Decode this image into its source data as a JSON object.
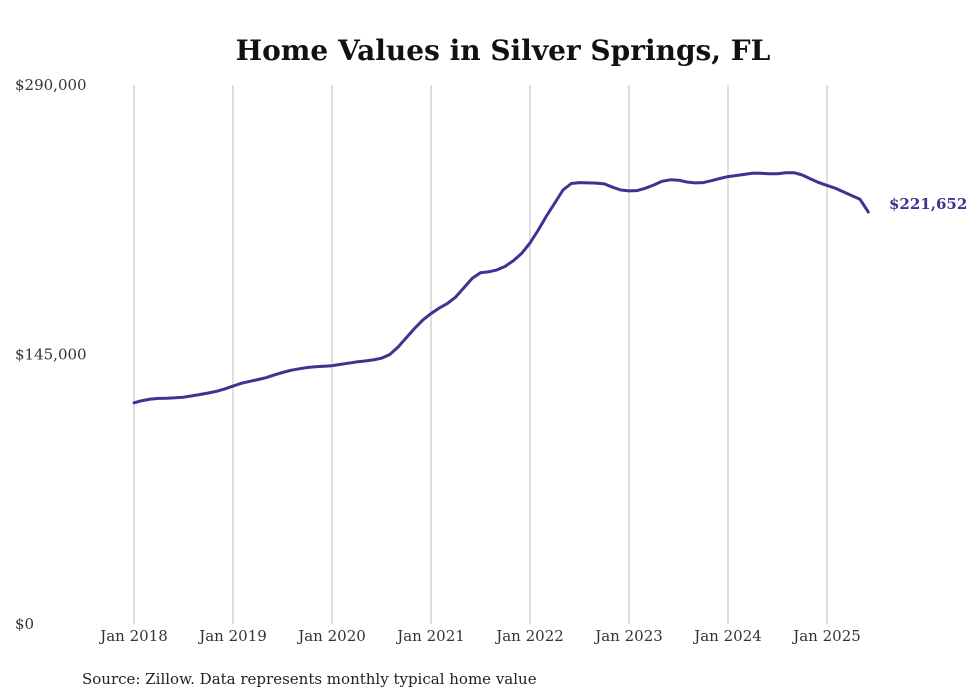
{
  "chart_data": {
    "type": "line",
    "title": "Home Values in Silver Springs, FL",
    "source": "Source: Zillow. Data represents monthly typical home value",
    "xlabel": "",
    "ylabel": "",
    "ylim": [
      0,
      290000
    ],
    "y_ticks": [
      "$0",
      "$145,000",
      "$290,000"
    ],
    "y_tick_values": [
      0,
      145000,
      290000
    ],
    "x_tick_labels": [
      "Jan 2018",
      "Jan 2019",
      "Jan 2020",
      "Jan 2021",
      "Jan 2022",
      "Jan 2023",
      "Jan 2024",
      "Jan 2025"
    ],
    "x_tick_dates": [
      "2018-01",
      "2019-01",
      "2020-01",
      "2021-01",
      "2022-01",
      "2023-01",
      "2024-01",
      "2025-01"
    ],
    "xlim": [
      "2018-01",
      "2025-06"
    ],
    "grid": "vertical",
    "line_color": "#3b3591",
    "end_label": "$221,652",
    "series": [
      {
        "x": [
          "2018-01",
          "2018-02",
          "2018-03",
          "2018-04",
          "2018-05",
          "2018-06",
          "2018-07",
          "2018-08",
          "2018-09",
          "2018-10",
          "2018-11",
          "2018-12",
          "2019-01",
          "2019-02",
          "2019-03",
          "2019-04",
          "2019-05",
          "2019-06",
          "2019-07",
          "2019-08",
          "2019-09",
          "2019-10",
          "2019-11",
          "2019-12",
          "2020-01",
          "2020-02",
          "2020-03",
          "2020-04",
          "2020-05",
          "2020-06",
          "2020-07",
          "2020-08",
          "2020-09",
          "2020-10",
          "2020-11",
          "2020-12",
          "2021-01",
          "2021-02",
          "2021-03",
          "2021-04",
          "2021-05",
          "2021-06",
          "2021-07",
          "2021-08",
          "2021-09",
          "2021-10",
          "2021-11",
          "2021-12",
          "2022-01",
          "2022-02",
          "2022-03",
          "2022-04",
          "2022-05",
          "2022-06",
          "2022-07",
          "2022-08",
          "2022-09",
          "2022-10",
          "2022-11",
          "2022-12",
          "2023-01",
          "2023-02",
          "2023-03",
          "2023-04",
          "2023-05",
          "2023-06",
          "2023-07",
          "2023-08",
          "2023-09",
          "2023-10",
          "2023-11",
          "2023-12",
          "2024-01",
          "2024-02",
          "2024-03",
          "2024-04",
          "2024-05",
          "2024-06",
          "2024-07",
          "2024-08",
          "2024-09",
          "2024-10",
          "2024-11",
          "2024-12",
          "2025-01",
          "2025-02",
          "2025-03",
          "2025-04",
          "2025-05",
          "2025-06"
        ],
        "values": [
          119000,
          120200,
          121000,
          121400,
          121500,
          121700,
          122000,
          122700,
          123500,
          124300,
          125200,
          126500,
          128000,
          129500,
          130500,
          131500,
          132500,
          134000,
          135300,
          136500,
          137300,
          138000,
          138400,
          138700,
          139000,
          139700,
          140300,
          141000,
          141500,
          142100,
          143000,
          145000,
          149000,
          154000,
          159000,
          163500,
          167000,
          170000,
          172500,
          176000,
          181000,
          186000,
          189000,
          189500,
          190500,
          192500,
          195500,
          199500,
          205000,
          212000,
          219500,
          226500,
          233500,
          237000,
          237500,
          237300,
          237200,
          236800,
          235000,
          233500,
          233000,
          233200,
          234500,
          236200,
          238200,
          239000,
          238800,
          237800,
          237300,
          237500,
          238500,
          239700,
          240700,
          241300,
          241900,
          242600,
          242500,
          242200,
          242300,
          242800,
          242800,
          241600,
          239500,
          237500,
          236000,
          234500,
          232500,
          230500,
          228500,
          221652
        ]
      }
    ]
  }
}
